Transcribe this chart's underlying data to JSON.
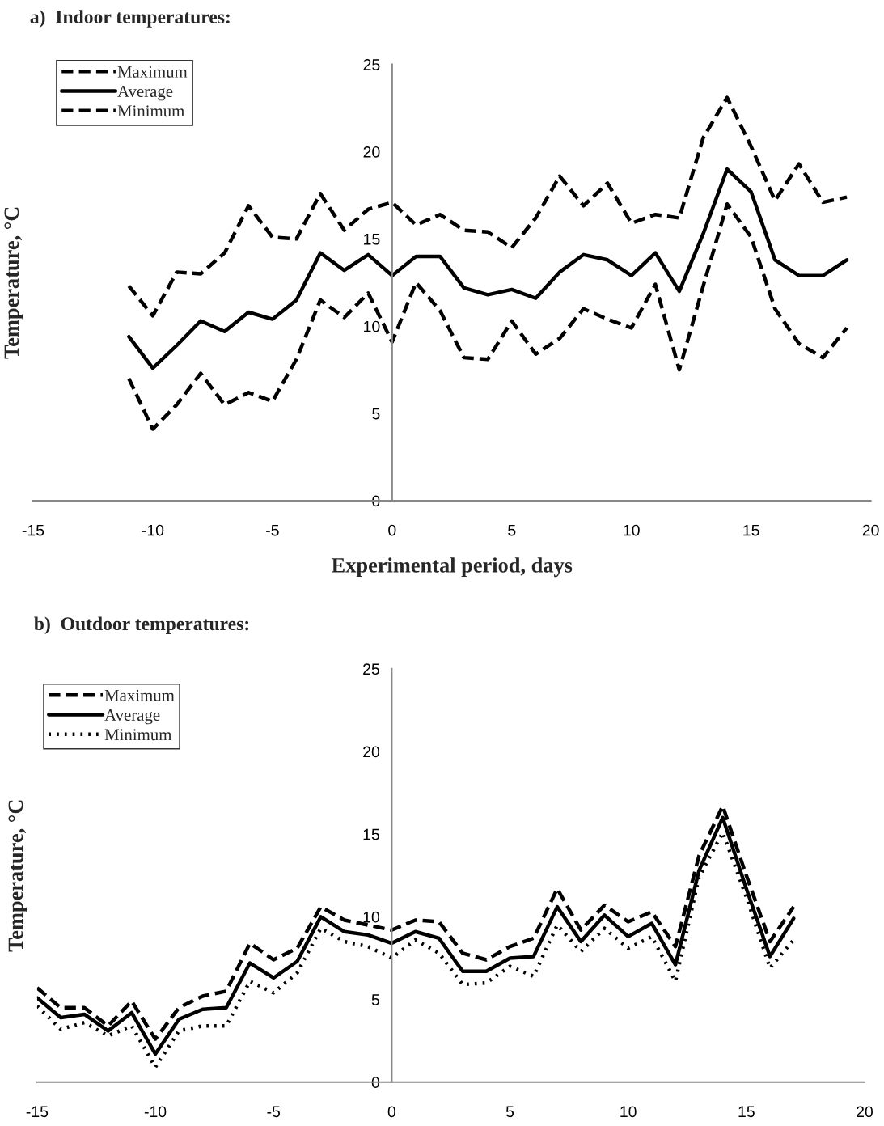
{
  "chart_data": [
    {
      "type": "line",
      "title": "a)  Indoor temperatures:",
      "xlabel": "Experimental period, days",
      "ylabel": "Temperature, °C",
      "x": [
        -11,
        -10,
        -9,
        -8,
        -7,
        -6,
        -5,
        -4,
        -3,
        -2,
        -1,
        0,
        1,
        2,
        3,
        4,
        5,
        6,
        7,
        8,
        9,
        10,
        11,
        12,
        13,
        14,
        15,
        16,
        17,
        18,
        19
      ],
      "series": [
        {
          "name": "Maximum",
          "color": "#000000",
          "line_style": "dashed",
          "values": [
            12.3,
            10.6,
            13.1,
            13.0,
            14.2,
            16.9,
            15.1,
            15.0,
            17.6,
            15.5,
            16.7,
            17.1,
            15.8,
            16.4,
            15.5,
            15.4,
            14.5,
            16.2,
            18.6,
            16.9,
            18.2,
            15.9,
            16.4,
            16.2,
            20.8,
            23.1,
            20.3,
            17.2,
            19.3,
            17.1,
            17.4
          ]
        },
        {
          "name": "Average",
          "color": "#000000",
          "line_style": "solid",
          "values": [
            9.4,
            7.6,
            8.9,
            10.3,
            9.7,
            10.8,
            10.4,
            11.5,
            14.2,
            13.2,
            14.1,
            12.9,
            14.0,
            14.0,
            12.2,
            11.8,
            12.1,
            11.6,
            13.1,
            14.1,
            13.8,
            12.9,
            14.2,
            12.0,
            15.3,
            19.0,
            17.7,
            13.8,
            12.9,
            12.9,
            13.8
          ]
        },
        {
          "name": "Minimum",
          "color": "#000000",
          "line_style": "dashed",
          "values": [
            7.0,
            4.1,
            5.5,
            7.3,
            5.5,
            6.2,
            5.7,
            8.1,
            11.5,
            10.5,
            11.9,
            9.1,
            12.5,
            10.9,
            8.2,
            8.1,
            10.3,
            8.4,
            9.3,
            11.0,
            10.4,
            9.9,
            12.4,
            7.5,
            12.3,
            17.0,
            15.1,
            11.0,
            9.0,
            8.2,
            9.9
          ]
        }
      ],
      "xlim": [
        -15,
        20
      ],
      "xticks": [
        -15,
        -10,
        -5,
        0,
        5,
        10,
        15,
        20
      ],
      "ylim": [
        0,
        25
      ],
      "yticks": [
        0,
        5,
        10,
        15,
        20,
        25
      ],
      "grid": false,
      "legend": "top left"
    },
    {
      "type": "line",
      "title": "b)  Outdoor temperatures:",
      "ylabel": "Temperature, °C",
      "x": [
        -15,
        -14,
        -13,
        -12,
        -11,
        -10,
        -9,
        -8,
        -7,
        -6,
        -5,
        -4,
        -3,
        -2,
        -1,
        0,
        1,
        2,
        3,
        4,
        5,
        6,
        7,
        8,
        9,
        10,
        11,
        12,
        13,
        14,
        15,
        16,
        17
      ],
      "series": [
        {
          "name": "Maximum",
          "color": "#000000",
          "line_style": "dashed",
          "values": [
            5.7,
            4.5,
            4.5,
            3.4,
            4.9,
            2.6,
            4.5,
            5.2,
            5.5,
            8.4,
            7.4,
            8.1,
            10.6,
            9.8,
            9.5,
            9.2,
            9.8,
            9.7,
            7.8,
            7.4,
            8.2,
            8.7,
            11.7,
            9.2,
            10.7,
            9.7,
            10.3,
            8.2,
            13.7,
            16.7,
            12.5,
            8.5,
            10.6
          ]
        },
        {
          "name": "Average",
          "color": "#000000",
          "line_style": "solid",
          "values": [
            5.1,
            3.9,
            4.1,
            3.1,
            4.2,
            1.7,
            3.8,
            4.4,
            4.5,
            7.2,
            6.3,
            7.3,
            10.0,
            9.1,
            8.9,
            8.4,
            9.1,
            8.7,
            6.7,
            6.7,
            7.5,
            7.6,
            10.6,
            8.5,
            10.1,
            8.8,
            9.6,
            7.1,
            12.8,
            16.0,
            11.7,
            7.6,
            9.9
          ]
        },
        {
          "name": "Minimum",
          "color": "#000000",
          "line_style": "dotted",
          "values": [
            4.6,
            3.2,
            3.6,
            2.8,
            3.4,
            0.9,
            3.1,
            3.4,
            3.4,
            6.1,
            5.4,
            6.6,
            9.3,
            8.5,
            8.2,
            7.5,
            8.6,
            7.8,
            5.9,
            6.0,
            7.0,
            6.4,
            9.5,
            7.9,
            9.3,
            8.1,
            8.8,
            6.1,
            12.4,
            15.1,
            11.2,
            6.9,
            8.6
          ]
        }
      ],
      "xlim": [
        -15,
        20
      ],
      "xticks": [
        -15,
        -10,
        -5,
        0,
        5,
        10,
        15,
        20
      ],
      "ylim": [
        0,
        25
      ],
      "yticks": [
        0,
        5,
        10,
        15,
        20,
        25
      ],
      "grid": false,
      "legend": "top left"
    }
  ]
}
